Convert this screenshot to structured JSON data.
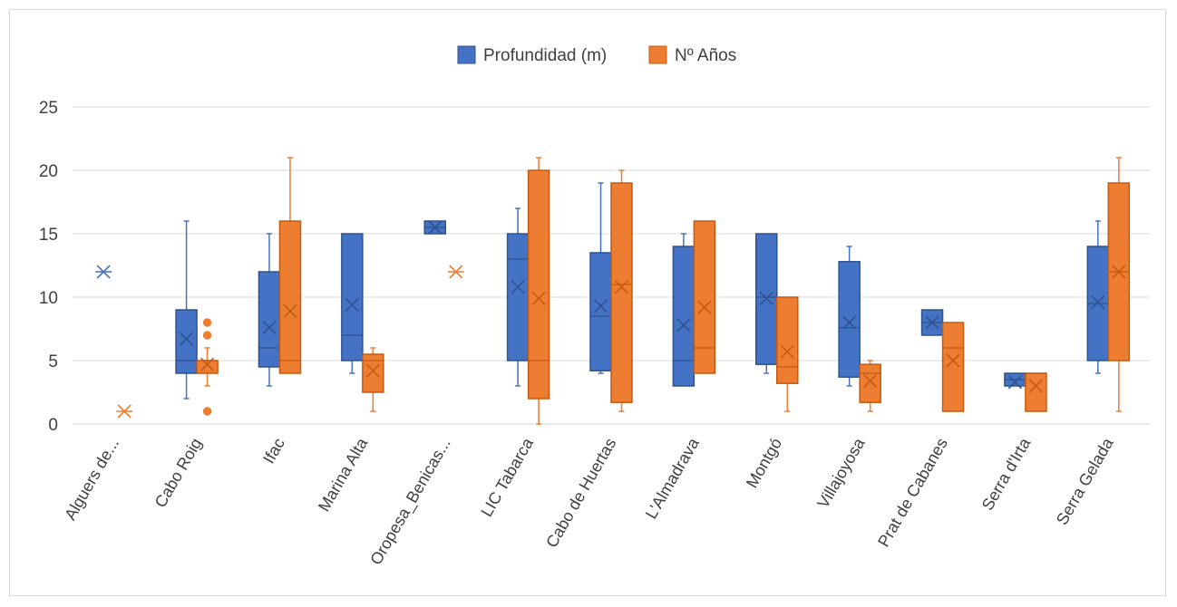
{
  "chart_data": {
    "type": "boxplot",
    "title": "",
    "xlabel": "",
    "ylabel": "",
    "ylim": [
      0,
      25
    ],
    "yticks": [
      "0",
      "5",
      "10",
      "15",
      "20",
      "25"
    ],
    "grid": true,
    "legend_position": "top",
    "categories": [
      "Alguers de...",
      "Cabo Roig",
      "Ifac",
      "Marina Alta",
      "Oropesa_Benicas...",
      "LIC Tabarca",
      "Cabo de Huertas",
      "L'Almadrava",
      "Montgó",
      "Villajoyosa",
      "Prat de Cabanes",
      "Serra d'Irta",
      "Serra Gelada"
    ],
    "series": [
      {
        "name": "Profundidad (m)",
        "color": "#4472c4",
        "fill": "#4472c4",
        "stroke": "#2f528f",
        "boxes": [
          {
            "min": 12,
            "q1": 12,
            "median": 12,
            "q3": 12,
            "max": 12,
            "mean": 12,
            "outliers": []
          },
          {
            "min": 2,
            "q1": 4,
            "median": 5,
            "q3": 9,
            "max": 16,
            "mean": 6.7,
            "outliers": []
          },
          {
            "min": 3,
            "q1": 4.5,
            "median": 6,
            "q3": 12,
            "max": 15,
            "mean": 7.6,
            "outliers": []
          },
          {
            "min": 4,
            "q1": 5,
            "median": 7,
            "q3": 15,
            "max": 15,
            "mean": 9.4,
            "outliers": []
          },
          {
            "min": 15,
            "q1": 15,
            "median": 15.5,
            "q3": 16,
            "max": 16,
            "mean": 15.5,
            "outliers": []
          },
          {
            "min": 3,
            "q1": 5,
            "median": 13,
            "q3": 15,
            "max": 17,
            "mean": 10.8,
            "outliers": []
          },
          {
            "min": 4,
            "q1": 4.2,
            "median": 8.5,
            "q3": 13.5,
            "max": 19,
            "mean": 9.3,
            "outliers": []
          },
          {
            "min": 3,
            "q1": 3,
            "median": 5,
            "q3": 14,
            "max": 15,
            "mean": 7.8,
            "outliers": []
          },
          {
            "min": 4,
            "q1": 4.7,
            "median": 10,
            "q3": 15,
            "max": 15,
            "mean": 9.9,
            "outliers": []
          },
          {
            "min": 3,
            "q1": 3.7,
            "median": 7.6,
            "q3": 12.8,
            "max": 14,
            "mean": 8,
            "outliers": []
          },
          {
            "min": 7,
            "q1": 7,
            "median": 8,
            "q3": 9,
            "max": 9,
            "mean": 8,
            "outliers": []
          },
          {
            "min": 3,
            "q1": 3,
            "median": 3.5,
            "q3": 4,
            "max": 4,
            "mean": 3.3,
            "outliers": []
          },
          {
            "min": 4,
            "q1": 5,
            "median": 9.5,
            "q3": 14,
            "max": 16,
            "mean": 9.6,
            "outliers": []
          }
        ]
      },
      {
        "name": "Nº Años",
        "color": "#ed7d31",
        "fill": "#ed7d31",
        "stroke": "#c55a11",
        "boxes": [
          {
            "min": 1,
            "q1": 1,
            "median": 1,
            "q3": 1,
            "max": 1,
            "mean": 1,
            "outliers": []
          },
          {
            "min": 3,
            "q1": 4,
            "median": 5,
            "q3": 5,
            "max": 6,
            "mean": 4.7,
            "outliers": [
              7,
              8,
              1
            ]
          },
          {
            "min": 4,
            "q1": 4,
            "median": 5,
            "q3": 16,
            "max": 21,
            "mean": 8.9,
            "outliers": []
          },
          {
            "min": 1,
            "q1": 2.5,
            "median": 5,
            "q3": 5.5,
            "max": 6,
            "mean": 4.2,
            "outliers": []
          },
          {
            "min": 12,
            "q1": 12,
            "median": 12,
            "q3": 12,
            "max": 12,
            "mean": 12,
            "outliers": []
          },
          {
            "min": 0,
            "q1": 2,
            "median": 5,
            "q3": 20,
            "max": 21,
            "mean": 9.9,
            "outliers": []
          },
          {
            "min": 1,
            "q1": 1.7,
            "median": 11,
            "q3": 19,
            "max": 20,
            "mean": 10.8,
            "outliers": []
          },
          {
            "min": 4,
            "q1": 4,
            "median": 6,
            "q3": 16,
            "max": 16,
            "mean": 9.2,
            "outliers": []
          },
          {
            "min": 1,
            "q1": 3.2,
            "median": 4.5,
            "q3": 10,
            "max": 10,
            "mean": 5.7,
            "outliers": []
          },
          {
            "min": 1,
            "q1": 1.7,
            "median": 4,
            "q3": 4.7,
            "max": 5,
            "mean": 3.4,
            "outliers": []
          },
          {
            "min": 1,
            "q1": 1,
            "median": 6,
            "q3": 8,
            "max": 8,
            "mean": 5,
            "outliers": []
          },
          {
            "min": 1,
            "q1": 1,
            "median": 4,
            "q3": 4,
            "max": 4,
            "mean": 3,
            "outliers": []
          },
          {
            "min": 1,
            "q1": 5,
            "median": 12,
            "q3": 19,
            "max": 21,
            "mean": 12,
            "outliers": []
          }
        ]
      }
    ]
  }
}
